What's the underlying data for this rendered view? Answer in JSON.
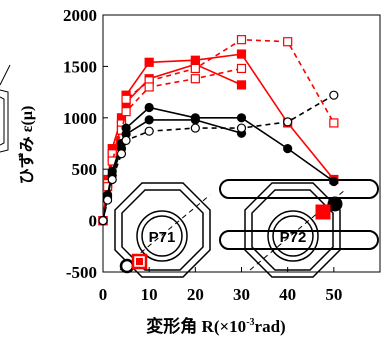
{
  "chart_data": {
    "type": "line",
    "xlabel_main": "変形角 R(",
    "xlabel_mult": "×10",
    "xlabel_exp": "-3",
    "xlabel_unit": "rad)",
    "ylabel": "ひずみ ε(μ)",
    "xlim": [
      0,
      60
    ],
    "ylim": [
      -500,
      2000
    ],
    "xticks": [
      "0",
      "10",
      "20",
      "30",
      "40",
      "50"
    ],
    "yticks": [
      "-500",
      "0",
      "500",
      "1000",
      "1500",
      "2000"
    ],
    "grid": false,
    "series": [
      {
        "color": "#ff0000",
        "marker": "square",
        "filled": true,
        "dashed": false,
        "x": [
          0,
          1,
          2,
          4,
          5,
          10,
          20,
          30,
          40,
          50
        ],
        "y": [
          0,
          400,
          700,
          1000,
          1220,
          1540,
          1560,
          1620,
          950,
          400
        ]
      },
      {
        "color": "#ff0000",
        "marker": "square",
        "filled": true,
        "dashed": false,
        "x": [
          0,
          1,
          2,
          4,
          5,
          10,
          20,
          30
        ],
        "y": [
          0,
          360,
          620,
          920,
          1150,
          1380,
          1520,
          1320
        ]
      },
      {
        "color": "#ff0000",
        "marker": "square",
        "filled": false,
        "dashed": true,
        "x": [
          0,
          1,
          2,
          4,
          5,
          10,
          20,
          30,
          40,
          50
        ],
        "y": [
          0,
          360,
          650,
          940,
          1180,
          1360,
          1480,
          1760,
          1740,
          950
        ]
      },
      {
        "color": "#ff0000",
        "marker": "square",
        "filled": false,
        "dashed": true,
        "x": [
          0,
          1,
          2,
          4,
          5,
          10,
          20,
          30
        ],
        "y": [
          0,
          330,
          580,
          880,
          1060,
          1300,
          1380,
          1480
        ]
      },
      {
        "color": "#000000",
        "marker": "circle",
        "filled": true,
        "dashed": false,
        "x": [
          0,
          1,
          2,
          4,
          5,
          10,
          20,
          30,
          40,
          50
        ],
        "y": [
          0,
          250,
          480,
          750,
          900,
          1100,
          1000,
          1000,
          700,
          380
        ]
      },
      {
        "color": "#000000",
        "marker": "circle",
        "filled": true,
        "dashed": false,
        "x": [
          0,
          1,
          2,
          4,
          5,
          10,
          20,
          30
        ],
        "y": [
          0,
          230,
          440,
          700,
          840,
          980,
          980,
          850
        ]
      },
      {
        "color": "#000000",
        "marker": "circle",
        "filled": false,
        "dashed": true,
        "x": [
          0,
          1,
          2,
          4,
          5,
          10,
          20,
          30,
          40,
          50
        ],
        "y": [
          0,
          200,
          400,
          650,
          780,
          870,
          900,
          900,
          960,
          1220
        ]
      }
    ],
    "inset": {
      "labels": [
        "P71",
        "P72"
      ],
      "colors": {
        "p71_marker": "#ff0000",
        "p72_marker": "#ff0000",
        "dot": "#000000"
      }
    }
  }
}
